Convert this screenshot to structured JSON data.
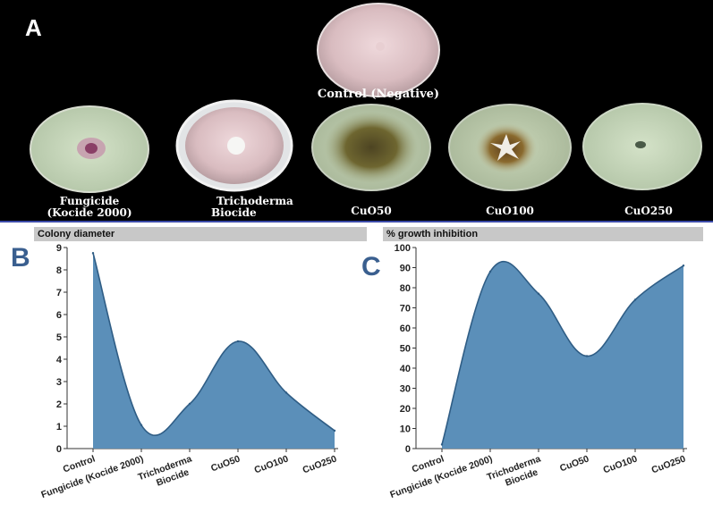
{
  "panels": {
    "a": "A",
    "b": "B",
    "c": "C"
  },
  "dish_labels": {
    "control": "Control (Negative)",
    "fungicide_line1": "Fungicide",
    "fungicide_line2": "(Kocide 2000)",
    "trichoderma_line1": "Trichoderma",
    "trichoderma_line2": "Biocide",
    "cuo50": "CuO50",
    "cuo100": "CuO100",
    "cuo250": "CuO250"
  },
  "colors": {
    "area_fill": "#5b8fb9",
    "area_stroke": "#2f5d85",
    "panel_letter": "#3a5f8f"
  },
  "chart_data": [
    {
      "type": "area",
      "title": "Colony diameter",
      "categories": [
        "Control",
        "Fungicide (Kocide 2000)",
        "Trichoderma  Biocide",
        "CuO50",
        "CuO100",
        "CuO250"
      ],
      "values": [
        8.75,
        1.05,
        2.0,
        4.8,
        2.5,
        0.8
      ],
      "ylim": [
        0,
        9
      ],
      "yticks": [
        0,
        1,
        2,
        3,
        4,
        5,
        6,
        7,
        8,
        9
      ]
    },
    {
      "type": "area",
      "title": "% growth inhibition",
      "categories": [
        "Control",
        "Fungicide (Kocide 2000)",
        "Trichoderma  Biocide",
        "CuO50",
        "CuO100",
        "CuO250"
      ],
      "values": [
        2,
        88,
        77,
        46,
        74,
        91
      ],
      "ylim": [
        0,
        100
      ],
      "yticks": [
        0,
        10,
        20,
        30,
        40,
        50,
        60,
        70,
        80,
        90,
        100
      ]
    }
  ]
}
